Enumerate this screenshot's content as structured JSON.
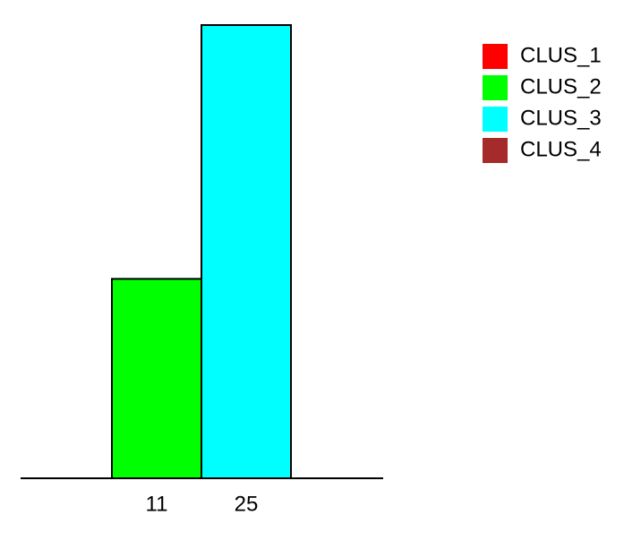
{
  "chart_data": {
    "type": "bar",
    "categories": [
      "11",
      "25"
    ],
    "values": [
      44,
      100
    ],
    "colors": [
      "#00ff00",
      "#00ffff"
    ],
    "ylim": [
      0,
      100
    ],
    "axes": {
      "y_axis_shown": false,
      "grid": false
    },
    "legend": {
      "placement": "top-right",
      "entries": [
        {
          "label": "CLUS_1",
          "color": "#ff0000"
        },
        {
          "label": "CLUS_2",
          "color": "#00ff00"
        },
        {
          "label": "CLUS_3",
          "color": "#00ffff"
        },
        {
          "label": "CLUS_4",
          "color": "#a52a2a"
        }
      ]
    }
  }
}
